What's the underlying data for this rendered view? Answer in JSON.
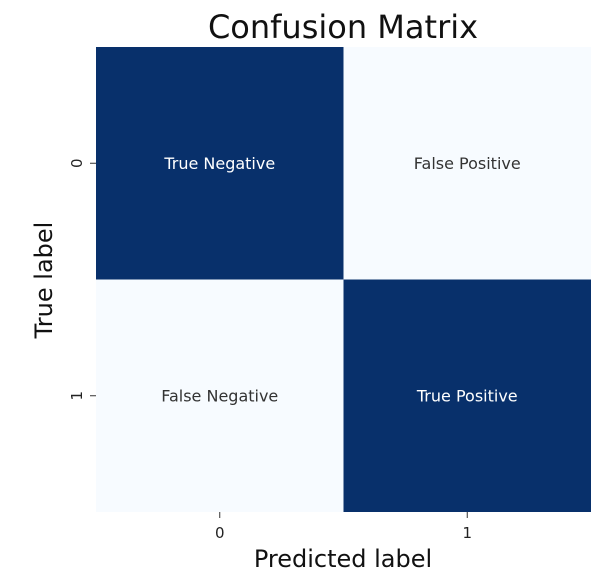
{
  "chart_data": {
    "type": "heatmap",
    "title": "Confusion Matrix",
    "xlabel": "Predicted label",
    "ylabel": "True label",
    "x_categories": [
      "0",
      "1"
    ],
    "y_categories": [
      "0",
      "1"
    ],
    "values": [
      [
        1,
        0
      ],
      [
        0,
        1
      ]
    ],
    "cell_labels": [
      [
        "True Negative",
        "False Positive"
      ],
      [
        "False Negative",
        "True Positive"
      ]
    ],
    "colormap": "Blues",
    "colorbar": false,
    "grid": false
  },
  "colors": {
    "high": "#08306b",
    "low": "#f7fbff",
    "text_on_high": "#ffffff",
    "text_on_low": "#333333"
  }
}
